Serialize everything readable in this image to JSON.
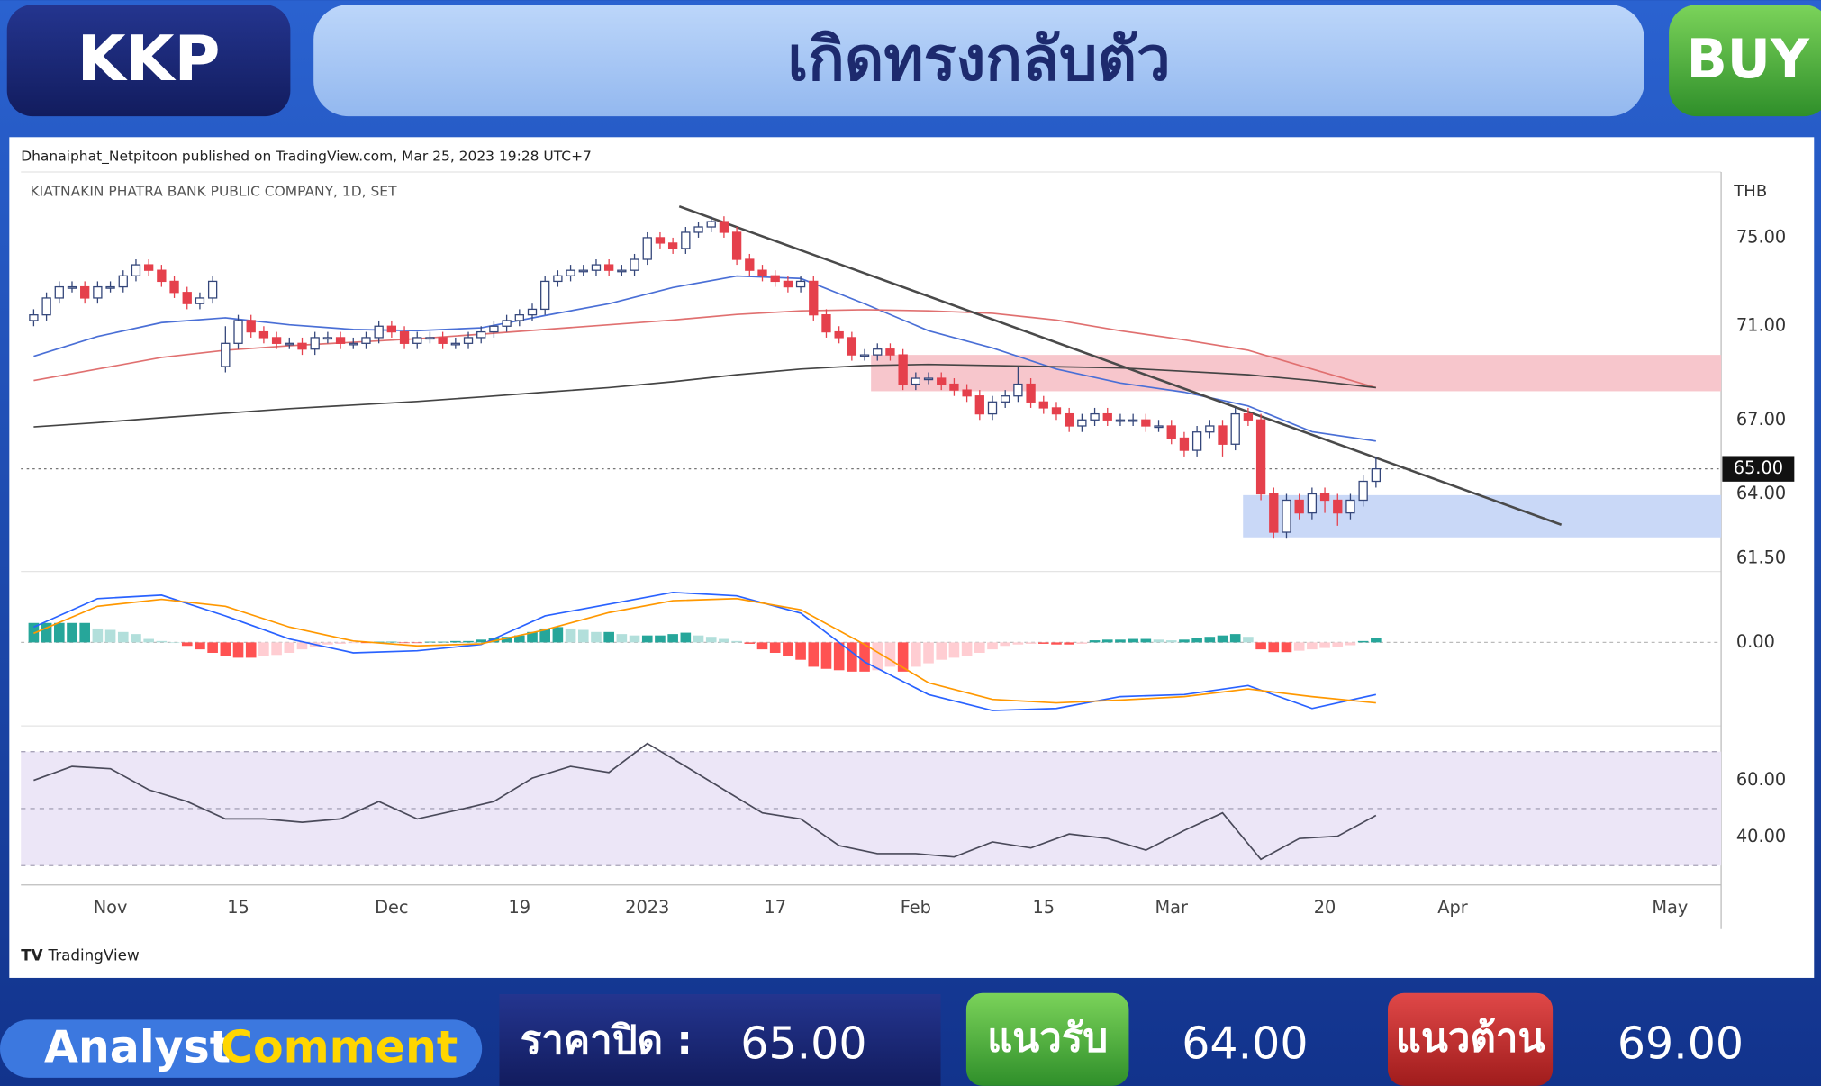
{
  "header": {
    "ticker": "KKP",
    "headline": "เกิดทรงกลับตัว",
    "signal": "BUY"
  },
  "chart_data": {
    "type": "candlestick",
    "attribution": "Dhanaiphat_Netpitoon published on TradingView.com, Mar 25, 2023 19:28 UTC+7",
    "symbol": "KIATNAKIN PHATRA BANK PUBLIC COMPANY, 1D, SET",
    "currency": "THB",
    "brand": "TradingView",
    "log_scale": true,
    "grid": false,
    "xlim": [
      -1,
      132
    ],
    "xticks": [
      {
        "value": 6,
        "label": "Nov"
      },
      {
        "value": 16,
        "label": "15"
      },
      {
        "value": 28,
        "label": "Dec"
      },
      {
        "value": 38,
        "label": "19"
      },
      {
        "value": 48,
        "label": "2023"
      },
      {
        "value": 58,
        "label": "17"
      },
      {
        "value": 69,
        "label": "Feb"
      },
      {
        "value": 79,
        "label": "15"
      },
      {
        "value": 89,
        "label": "Mar"
      },
      {
        "value": 101,
        "label": "20"
      },
      {
        "value": 111,
        "label": "Apr"
      },
      {
        "value": 128,
        "label": "May"
      }
    ],
    "ylim": [
      61,
      78
    ],
    "yticks": [
      {
        "value": 75,
        "label": "75.00"
      },
      {
        "value": 71,
        "label": "71.00"
      },
      {
        "value": 67,
        "label": "67.00"
      },
      {
        "value": 64,
        "label": "64.00"
      },
      {
        "value": 61.5,
        "label": "61.50"
      }
    ],
    "up_color": "#ffffff",
    "up_border": "#34467a",
    "down_color": "#e5404c",
    "open": [
      71.25,
      71.5,
      72.25,
      72.75,
      72.75,
      72.25,
      72.75,
      72.75,
      73.25,
      73.75,
      73.5,
      73.0,
      72.5,
      72.0,
      72.25,
      69.25,
      70.25,
      71.25,
      70.75,
      70.5,
      70.25,
      70.25,
      70.0,
      70.5,
      70.5,
      70.25,
      70.25,
      70.5,
      71.0,
      70.75,
      70.25,
      70.5,
      70.5,
      70.25,
      70.25,
      70.5,
      70.75,
      71.0,
      71.25,
      71.5,
      71.75,
      73.0,
      73.25,
      73.5,
      73.5,
      73.75,
      73.5,
      73.5,
      74.0,
      75.0,
      74.75,
      74.5,
      75.25,
      75.5,
      75.75,
      75.25,
      74.0,
      73.5,
      73.25,
      73.0,
      72.75,
      73.0,
      71.5,
      70.75,
      70.5,
      69.75,
      69.75,
      70.0,
      69.75,
      68.5,
      68.75,
      68.75,
      68.5,
      68.25,
      68.0,
      67.25,
      67.75,
      68.0,
      68.5,
      67.75,
      67.5,
      67.25,
      66.75,
      67.0,
      67.25,
      67.0,
      67.0,
      67.0,
      66.75,
      66.75,
      66.25,
      65.75,
      66.5,
      66.75,
      66.0,
      67.25,
      67.0,
      64.0,
      62.5,
      63.75,
      63.25,
      64.0,
      63.75,
      63.25,
      63.75,
      64.5
    ],
    "high": [
      71.75,
      72.5,
      73.0,
      73.0,
      73.0,
      73.0,
      73.0,
      73.5,
      74.0,
      74.0,
      73.75,
      73.25,
      72.75,
      72.5,
      73.25,
      71.0,
      71.5,
      71.5,
      71.0,
      70.75,
      70.5,
      70.5,
      70.75,
      70.75,
      70.75,
      70.5,
      70.75,
      71.25,
      71.25,
      71.0,
      70.75,
      70.75,
      70.75,
      70.5,
      70.75,
      71.0,
      71.25,
      71.5,
      71.75,
      72.0,
      73.25,
      73.5,
      73.75,
      73.75,
      74.0,
      74.0,
      73.75,
      74.25,
      75.25,
      75.25,
      75.0,
      75.5,
      75.75,
      76.0,
      76.0,
      75.5,
      74.25,
      73.75,
      73.5,
      73.25,
      73.25,
      73.25,
      71.75,
      71.0,
      70.75,
      70.0,
      70.25,
      70.25,
      70.0,
      69.0,
      69.0,
      69.0,
      68.75,
      68.5,
      68.25,
      68.0,
      68.25,
      69.25,
      68.75,
      68.0,
      67.75,
      67.5,
      67.25,
      67.5,
      67.5,
      67.25,
      67.25,
      67.25,
      67.0,
      67.0,
      66.5,
      66.75,
      67.0,
      67.0,
      67.5,
      67.5,
      67.25,
      64.25,
      64.0,
      64.0,
      64.25,
      64.25,
      64.0,
      64.0,
      64.75,
      65.5
    ],
    "low": [
      71.0,
      71.25,
      72.0,
      72.5,
      72.0,
      72.0,
      72.5,
      72.5,
      73.0,
      73.25,
      72.75,
      72.25,
      71.75,
      71.75,
      72.0,
      69.0,
      70.0,
      70.5,
      70.25,
      70.0,
      70.0,
      69.75,
      69.75,
      70.25,
      70.0,
      70.0,
      70.0,
      70.25,
      70.5,
      70.0,
      70.0,
      70.25,
      70.0,
      70.0,
      70.0,
      70.25,
      70.5,
      70.75,
      71.0,
      71.25,
      71.5,
      72.75,
      73.0,
      73.25,
      73.25,
      73.25,
      73.25,
      73.25,
      73.75,
      74.5,
      74.25,
      74.25,
      75.0,
      75.25,
      75.0,
      73.75,
      73.25,
      73.0,
      72.75,
      72.5,
      72.5,
      71.25,
      70.5,
      70.25,
      69.5,
      69.5,
      69.5,
      69.5,
      68.25,
      68.25,
      68.5,
      68.25,
      68.0,
      67.75,
      67.0,
      67.0,
      67.5,
      67.75,
      67.5,
      67.25,
      67.0,
      66.5,
      66.5,
      66.75,
      66.75,
      66.75,
      66.75,
      66.5,
      66.5,
      66.0,
      65.5,
      65.5,
      66.25,
      65.5,
      65.75,
      66.75,
      63.75,
      62.25,
      62.25,
      63.0,
      63.0,
      63.25,
      62.75,
      63.0,
      63.5,
      64.25
    ],
    "close": [
      71.5,
      72.25,
      72.75,
      72.75,
      72.25,
      72.75,
      72.75,
      73.25,
      73.75,
      73.5,
      73.0,
      72.5,
      72.0,
      72.25,
      73.0,
      70.25,
      71.25,
      70.75,
      70.5,
      70.25,
      70.25,
      70.0,
      70.5,
      70.5,
      70.25,
      70.25,
      70.5,
      71.0,
      70.75,
      70.25,
      70.5,
      70.5,
      70.25,
      70.25,
      70.5,
      70.75,
      71.0,
      71.25,
      71.5,
      71.75,
      73.0,
      73.25,
      73.5,
      73.5,
      73.75,
      73.5,
      73.5,
      74.0,
      75.0,
      74.75,
      74.5,
      75.25,
      75.5,
      75.75,
      75.25,
      74.0,
      73.5,
      73.25,
      73.0,
      72.75,
      73.0,
      71.5,
      70.75,
      70.5,
      69.75,
      69.75,
      70.0,
      69.75,
      68.5,
      68.75,
      68.75,
      68.5,
      68.25,
      68.0,
      67.25,
      67.75,
      68.0,
      68.5,
      67.75,
      67.5,
      67.25,
      66.75,
      67.0,
      67.25,
      67.0,
      67.0,
      67.0,
      66.75,
      66.75,
      66.25,
      65.75,
      66.5,
      66.75,
      66.0,
      67.25,
      67.0,
      64.0,
      62.5,
      63.75,
      63.25,
      64.0,
      63.75,
      63.25,
      63.75,
      64.5,
      65.0
    ],
    "last_price": {
      "value": 65,
      "label": "65.00"
    },
    "lines": [
      {
        "color": "#4a6fd6",
        "x": [
          0,
          5,
          10,
          15,
          20,
          25,
          30,
          35,
          40,
          45,
          50,
          55,
          60,
          65,
          70,
          75,
          80,
          85,
          90,
          95,
          100,
          105
        ],
        "values": [
          69.69,
          70.55,
          71.16,
          71.37,
          71.06,
          70.86,
          70.8,
          70.93,
          71.47,
          71.99,
          72.72,
          73.24,
          73.13,
          71.99,
          70.8,
          70.05,
          69.14,
          68.55,
          68.16,
          67.58,
          66.51,
          66.13
        ]
      },
      {
        "color": "#e07070",
        "x": [
          0,
          5,
          10,
          15,
          20,
          25,
          30,
          35,
          40,
          45,
          50,
          55,
          60,
          65,
          70,
          75,
          80,
          85,
          90,
          95,
          100,
          105
        ],
        "values": [
          68.65,
          69.14,
          69.64,
          69.95,
          70.15,
          70.3,
          70.45,
          70.65,
          70.86,
          71.06,
          71.27,
          71.52,
          71.68,
          71.73,
          71.68,
          71.57,
          71.27,
          70.8,
          70.4,
          69.95,
          69.14,
          68.35
        ]
      },
      {
        "color": "#444444",
        "x": [
          0,
          5,
          10,
          15,
          20,
          25,
          30,
          35,
          40,
          45,
          50,
          55,
          60,
          65,
          70,
          75,
          80,
          85,
          90,
          95,
          100,
          105
        ],
        "values": [
          66.71,
          66.89,
          67.09,
          67.28,
          67.47,
          67.62,
          67.77,
          67.96,
          68.16,
          68.35,
          68.6,
          68.9,
          69.14,
          69.29,
          69.34,
          69.29,
          69.24,
          69.19,
          69.05,
          68.9,
          68.65,
          68.35
        ]
      }
    ],
    "trendline": {
      "color": "#4a4a4a",
      "x": [
        50.5,
        119.5
      ],
      "values": [
        76.47,
        62.79
      ]
    },
    "zones": [
      {
        "color": "#f7c6cc",
        "x": [
          65.5,
          132
        ],
        "values": [
          68.2,
          69.75
        ]
      },
      {
        "color": "#c9d8f7",
        "x": [
          94.6,
          132
        ],
        "values": [
          62.3,
          63.95
        ]
      }
    ],
    "macd": {
      "ylim": [
        -1.2,
        0.97
      ],
      "yticks": [
        {
          "value": 0,
          "label": "0.00"
        }
      ],
      "x": [
        0,
        5,
        10,
        15,
        20,
        25,
        30,
        35,
        40,
        45,
        50,
        55,
        60,
        65,
        70,
        75,
        80,
        85,
        90,
        95,
        100,
        105
      ],
      "macd": {
        "color": "#2962ff",
        "values": [
          0.22,
          0.63,
          0.68,
          0.38,
          0.05,
          -0.15,
          -0.12,
          -0.03,
          0.38,
          0.55,
          0.72,
          0.67,
          0.42,
          -0.28,
          -0.75,
          -0.98,
          -0.95,
          -0.78,
          -0.75,
          -0.62,
          -0.95,
          -0.75
        ]
      },
      "signal": {
        "color": "#ff9800",
        "values": [
          0.13,
          0.52,
          0.62,
          0.52,
          0.22,
          0.02,
          -0.05,
          -0.02,
          0.18,
          0.43,
          0.6,
          0.63,
          0.47,
          -0.03,
          -0.58,
          -0.82,
          -0.87,
          -0.83,
          -0.78,
          -0.67,
          -0.78,
          -0.87
        ]
      },
      "histogram": {
        "colors": [
          "#26a69a",
          "#b2dfdb",
          "#ff5252",
          "#ffcdd2"
        ],
        "values": [
          0.28,
          0.28,
          0.28,
          0.28,
          0.28,
          0.2,
          0.18,
          0.15,
          0.12,
          0.05,
          0.02,
          0.0,
          -0.05,
          -0.1,
          -0.15,
          -0.2,
          -0.22,
          -0.22,
          -0.2,
          -0.18,
          -0.15,
          -0.1,
          -0.06,
          -0.03,
          -0.02,
          -0.01,
          -0.01,
          0.01,
          0.01,
          -0.01,
          -0.01,
          0.01,
          0.01,
          0.02,
          0.02,
          0.04,
          0.06,
          0.08,
          0.1,
          0.15,
          0.2,
          0.22,
          0.2,
          0.18,
          0.15,
          0.15,
          0.12,
          0.1,
          0.1,
          0.1,
          0.12,
          0.14,
          0.1,
          0.08,
          0.05,
          0.02,
          -0.02,
          -0.1,
          -0.15,
          -0.2,
          -0.25,
          -0.35,
          -0.38,
          -0.4,
          -0.42,
          -0.42,
          -0.4,
          -0.35,
          -0.42,
          -0.35,
          -0.3,
          -0.25,
          -0.22,
          -0.2,
          -0.15,
          -0.1,
          -0.05,
          -0.03,
          -0.02,
          -0.02,
          -0.03,
          -0.03,
          -0.02,
          0.03,
          0.04,
          0.04,
          0.05,
          0.05,
          0.04,
          0.03,
          0.04,
          0.06,
          0.08,
          0.1,
          0.12,
          0.08,
          -0.1,
          -0.14,
          -0.14,
          -0.12,
          -0.1,
          -0.08,
          -0.06,
          -0.04,
          0.02,
          0.06
        ]
      }
    },
    "rsi": {
      "ylim": [
        24,
        77
      ],
      "yticks": [
        {
          "value": 60,
          "label": "60.00"
        },
        {
          "value": 40,
          "label": "40.00"
        }
      ],
      "levels": [
        30,
        50,
        70
      ],
      "band_color": "#ece6f7",
      "color": "#4a4a5a",
      "x": [
        0,
        3,
        6,
        9,
        12,
        15,
        18,
        21,
        24,
        27,
        30,
        33,
        36,
        39,
        42,
        45,
        48,
        51,
        54,
        57,
        60,
        63,
        66,
        69,
        72,
        75,
        78,
        81,
        84,
        87,
        90,
        93,
        96,
        99,
        102,
        105
      ],
      "values": [
        59.9,
        64.8,
        64.0,
        56.6,
        52.5,
        46.4,
        46.4,
        45.2,
        46.4,
        52.5,
        46.4,
        49.3,
        52.5,
        60.7,
        64.8,
        62.7,
        72.9,
        64.8,
        56.6,
        48.5,
        46.4,
        37.0,
        34.2,
        34.2,
        33.0,
        38.3,
        36.2,
        41.1,
        39.5,
        35.4,
        42.3,
        48.5,
        32.2,
        39.5,
        40.3,
        47.6
      ]
    }
  },
  "footer": {
    "analyst": "Analyst",
    "comment": "Comment",
    "close_label": "ราคาปิด :",
    "close": "65.00",
    "support_label": "แนวรับ",
    "support": "64.00",
    "resistance_label": "แนวต้าน",
    "resistance": "69.00"
  }
}
